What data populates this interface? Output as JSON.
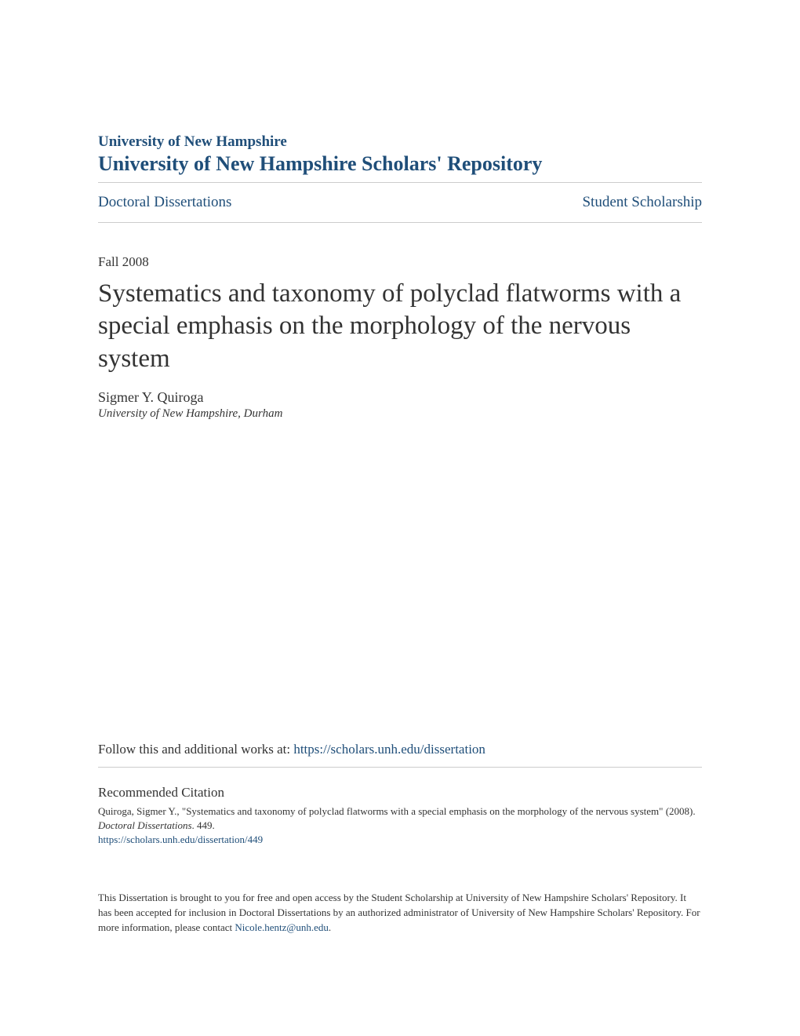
{
  "header": {
    "university": "University of New Hampshire",
    "repository": "University of New Hampshire Scholars' Repository"
  },
  "breadcrumb": {
    "left": "Doctoral Dissertations",
    "right": "Student Scholarship"
  },
  "document": {
    "date": "Fall 2008",
    "title": "Systematics and taxonomy of polyclad flatworms with a special emphasis on the morphology of the nervous system",
    "author": "Sigmer Y. Quiroga",
    "affiliation": "University of New Hampshire, Durham"
  },
  "follow": {
    "prefix": "Follow this and additional works at: ",
    "link": "https://scholars.unh.edu/dissertation"
  },
  "citation": {
    "heading": "Recommended Citation",
    "text_part1": "Quiroga, Sigmer Y., \"Systematics and taxonomy of polyclad flatworms with a special emphasis on the morphology of the nervous system\" (2008). ",
    "text_italic": "Doctoral Dissertations",
    "text_part2": ". 449.",
    "link": "https://scholars.unh.edu/dissertation/449"
  },
  "footer": {
    "text": "This Dissertation is brought to you for free and open access by the Student Scholarship at University of New Hampshire Scholars' Repository. It has been accepted for inclusion in Doctoral Dissertations by an authorized administrator of University of New Hampshire Scholars' Repository. For more information, please contact ",
    "email": "Nicole.hentz@unh.edu",
    "text_end": "."
  },
  "colors": {
    "link_color": "#1f4e79",
    "text_color": "#333333",
    "border_color": "#cccccc",
    "background": "#ffffff"
  }
}
